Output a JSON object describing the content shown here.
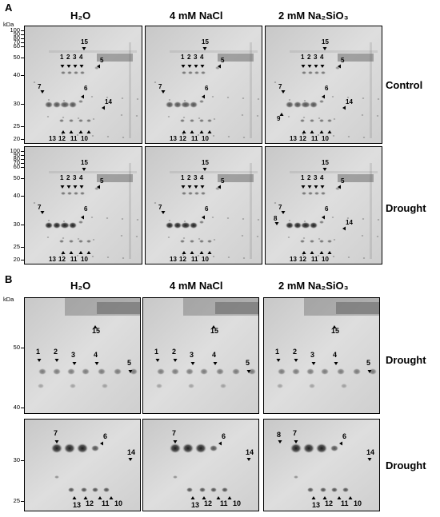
{
  "panels": {
    "a": {
      "letter": "A",
      "kda_unit": "kDa",
      "columns": {
        "h2o": "H₂O",
        "nacl": "4 mM NaCl",
        "na2sio3": "2 mM Na₂SiO₃"
      },
      "rows": {
        "control": "Control",
        "drought": "Drought"
      },
      "mw_ticks": [
        "100",
        "90",
        "80",
        "70",
        "60",
        "50",
        "40",
        "30",
        "25",
        "20"
      ],
      "spot_labels": [
        "1",
        "2",
        "3",
        "4",
        "5",
        "6",
        "7",
        "8",
        "9",
        "10",
        "11",
        "12",
        "13",
        "14",
        "15"
      ]
    },
    "b": {
      "letter": "B",
      "kda_unit": "kDa",
      "columns": {
        "h2o": "H₂O",
        "nacl": "4 mM NaCl",
        "na2sio3": "2 mM Na₂SiO₃"
      },
      "rows": {
        "drought_top": "Drought",
        "drought_bottom": "Drought"
      },
      "mw_ticks_top": [
        "50",
        "40"
      ],
      "mw_ticks_bottom": [
        "30",
        "25"
      ]
    }
  },
  "colors": {
    "gel_bg": "#d9d9d9",
    "spot": "#1a1a1a",
    "border": "#000000"
  }
}
